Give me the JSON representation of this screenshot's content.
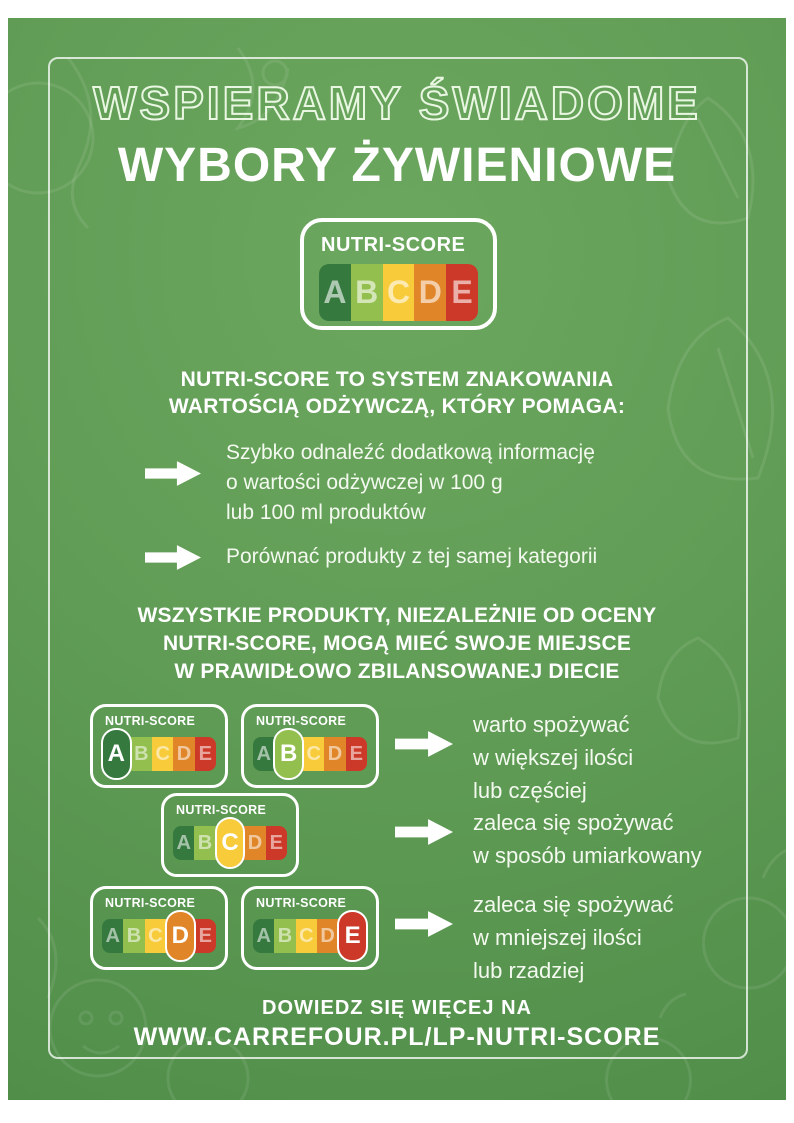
{
  "titles": {
    "outline": "WSPIERAMY ŚWIADOME",
    "solid": "WYBORY ŻYWIENIOWE"
  },
  "nutri_score": {
    "label": "NUTRI-SCORE",
    "grades": [
      "A",
      "B",
      "C",
      "D",
      "E"
    ],
    "colors": {
      "A": "#35793f",
      "B": "#93bf4e",
      "C": "#f7cb3a",
      "D": "#e08628",
      "E": "#cd3928"
    }
  },
  "intro": {
    "heading": "NUTRI-SCORE TO SYSTEM ZNAKOWANIA\nWARTOŚCIĄ ODŻYWCZĄ, KTÓRY POMAGA:",
    "bullets": [
      "Szybko odnaleźć dodatkową informację\no wartości odżywczej w 100 g\nlub 100 ml produktów",
      "Porównać produkty z tej samej kategorii"
    ]
  },
  "middle_heading": "WSZYSTKIE PRODUKTY, NIEZALEŻNIE OD OCENY\nNUTRI-SCORE, MOGĄ MIEĆ SWOJE MIEJSCE\nW PRAWIDŁOWO ZBILANSOWANEJ DIECIE",
  "recommendations": [
    {
      "highlighted": [
        "A",
        "B"
      ],
      "text": "warto spożywać\nw większej ilości\nlub częściej"
    },
    {
      "highlighted": [
        "C"
      ],
      "text": "zaleca się spożywać\nw sposób umiarkowany"
    },
    {
      "highlighted": [
        "D",
        "E"
      ],
      "text": "zaleca się spożywać\nw mniejszej ilości\nlub rzadziej"
    }
  ],
  "footer": {
    "line1": "DOWIEDZ SIĘ WIĘCEJ NA",
    "line2": "WWW.CARREFOUR.PL/LP-NUTRI-SCORE"
  },
  "colors": {
    "poster_green": "#5f9c54",
    "frame_white": "#ffffff",
    "text_white": "#f3f9ef"
  }
}
